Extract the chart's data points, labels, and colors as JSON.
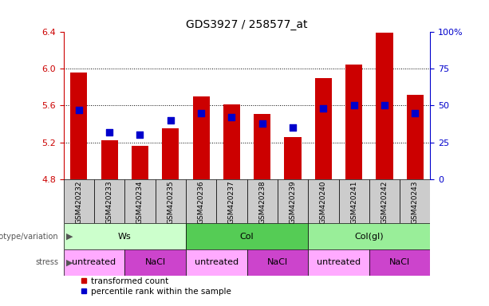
{
  "title": "GDS3927 / 258577_at",
  "samples": [
    "GSM420232",
    "GSM420233",
    "GSM420234",
    "GSM420235",
    "GSM420236",
    "GSM420237",
    "GSM420238",
    "GSM420239",
    "GSM420240",
    "GSM420241",
    "GSM420242",
    "GSM420243"
  ],
  "transformed_count": [
    5.96,
    5.22,
    5.16,
    5.35,
    5.7,
    5.61,
    5.51,
    5.26,
    5.9,
    6.05,
    6.39,
    5.72
  ],
  "percentile_rank": [
    47,
    32,
    30,
    40,
    45,
    42,
    38,
    35,
    48,
    50,
    50,
    45
  ],
  "y_min": 4.8,
  "y_max": 6.4,
  "y_ticks_left": [
    4.8,
    5.2,
    5.6,
    6.0,
    6.4
  ],
  "y_ticks_right": [
    0,
    25,
    50,
    75,
    100
  ],
  "bar_color": "#cc0000",
  "dot_color": "#0000cc",
  "grid_lines": [
    5.2,
    5.6,
    6.0
  ],
  "genotype_groups": [
    {
      "label": "Ws",
      "start": 0,
      "end": 4,
      "color": "#ccffcc"
    },
    {
      "label": "Col",
      "start": 4,
      "end": 8,
      "color": "#55cc55"
    },
    {
      "label": "Col(gl)",
      "start": 8,
      "end": 12,
      "color": "#99ee99"
    }
  ],
  "stress_groups": [
    {
      "label": "untreated",
      "start": 0,
      "end": 2,
      "color": "#ffaaff"
    },
    {
      "label": "NaCl",
      "start": 2,
      "end": 4,
      "color": "#cc44cc"
    },
    {
      "label": "untreated",
      "start": 4,
      "end": 6,
      "color": "#ffaaff"
    },
    {
      "label": "NaCl",
      "start": 6,
      "end": 8,
      "color": "#cc44cc"
    },
    {
      "label": "untreated",
      "start": 8,
      "end": 10,
      "color": "#ffaaff"
    },
    {
      "label": "NaCl",
      "start": 10,
      "end": 12,
      "color": "#cc44cc"
    }
  ],
  "legend_items": [
    {
      "label": "transformed count",
      "color": "#cc0000"
    },
    {
      "label": "percentile rank within the sample",
      "color": "#0000cc"
    }
  ],
  "ylabel_left_color": "#cc0000",
  "ylabel_right_color": "#0000cc",
  "bar_width": 0.55,
  "dot_size": 40,
  "sample_cell_color": "#cccccc",
  "left_label_color": "#555555"
}
